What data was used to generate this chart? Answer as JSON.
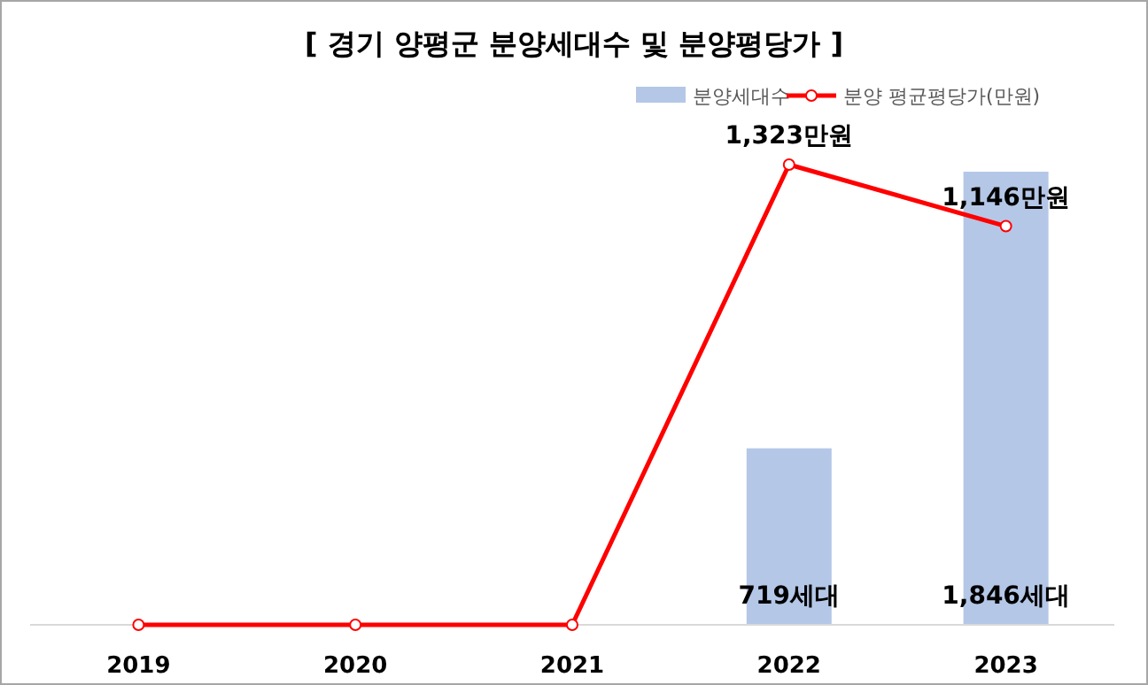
{
  "chart_data": {
    "type": "bar",
    "title": "[ 경기 양평군 분양세대수 및 분양평당가 ]",
    "categories": [
      "2019",
      "2020",
      "2021",
      "2022",
      "2023"
    ],
    "series": [
      {
        "name": "분양세대수",
        "color": "#b4c7e7",
        "values": [
          0,
          0,
          0,
          719,
          1846
        ],
        "value_labels": [
          null,
          null,
          null,
          "719세대",
          "1,846세대"
        ]
      },
      {
        "name": "분양 평균평당가(만원)",
        "type": "line",
        "axis": "y2",
        "color": "#ff0000",
        "values": [
          0,
          0,
          0,
          1323,
          1146
        ],
        "value_labels": [
          null,
          null,
          null,
          "1,323만원",
          "1,146만원"
        ]
      }
    ],
    "tick_labels": "x",
    "legend": "top right",
    "marker": "circle"
  }
}
